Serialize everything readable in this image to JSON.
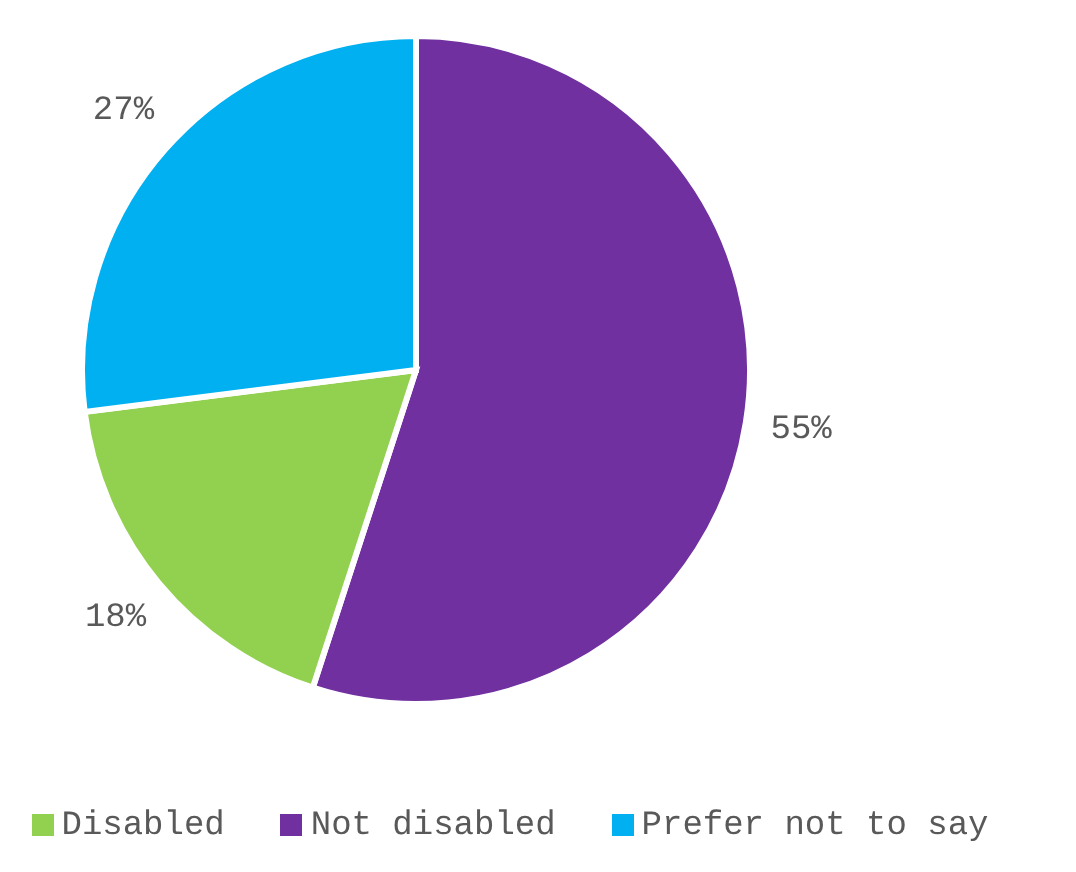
{
  "chart_data": {
    "type": "pie",
    "categories": [
      "Not disabled",
      "Disabled",
      "Prefer not to say"
    ],
    "values": [
      55,
      18,
      27
    ],
    "colors": [
      "#7030a0",
      "#92d050",
      "#00b0f0"
    ],
    "value_labels": [
      "55%",
      "18%",
      "27%"
    ],
    "legend": "bottom"
  }
}
